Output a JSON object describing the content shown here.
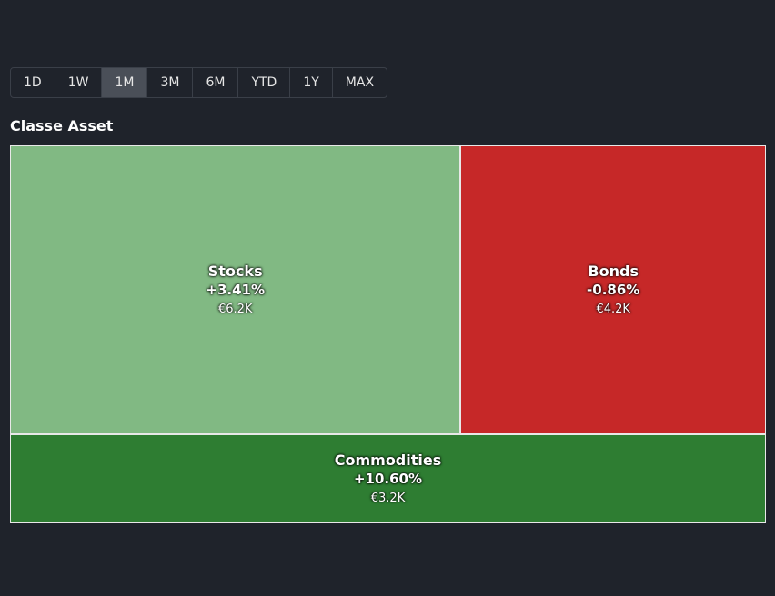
{
  "range_buttons": {
    "options": [
      "1D",
      "1W",
      "1M",
      "3M",
      "6M",
      "YTD",
      "1Y",
      "MAX"
    ],
    "selected": 2
  },
  "chart_data": {
    "type": "treemap",
    "title": "Classe Asset",
    "categories": [
      "Stocks",
      "Bonds",
      "Commodities"
    ],
    "values": [
      6200,
      4200,
      3200
    ],
    "value_labels": [
      "€6.2K",
      "€4.2K",
      "€3.2K"
    ],
    "changes": [
      3.41,
      -0.86,
      10.6
    ],
    "change_labels": [
      "+3.41%",
      "-0.86%",
      "+10.60%"
    ],
    "colors": [
      "#81b983",
      "#c62828",
      "#2e7d32"
    ]
  }
}
